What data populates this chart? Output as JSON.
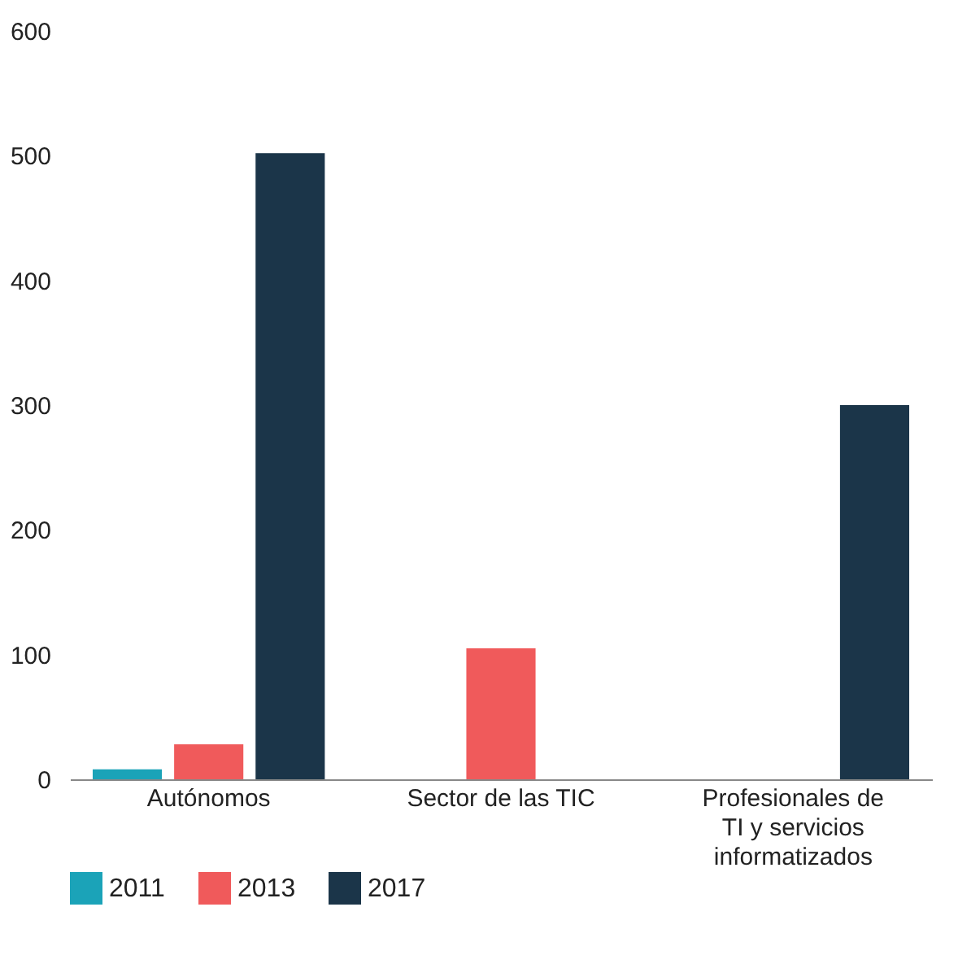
{
  "chart_data": {
    "type": "bar",
    "categories": [
      "Autónomos",
      "Sector de las TIC",
      "Profesionales de\nTI y servicios\ninformatizados"
    ],
    "series": [
      {
        "name": "2011",
        "color": "#1ba3b8",
        "values": [
          8,
          null,
          null
        ]
      },
      {
        "name": "2013",
        "color": "#f05a5b",
        "values": [
          28,
          105,
          null
        ]
      },
      {
        "name": "2017",
        "color": "#1b3549",
        "values": [
          502,
          null,
          300
        ]
      }
    ],
    "ylim": [
      0,
      600
    ],
    "yticks": [
      0,
      100,
      200,
      300,
      400,
      500,
      600
    ],
    "grid": false,
    "legend": "bottom"
  }
}
